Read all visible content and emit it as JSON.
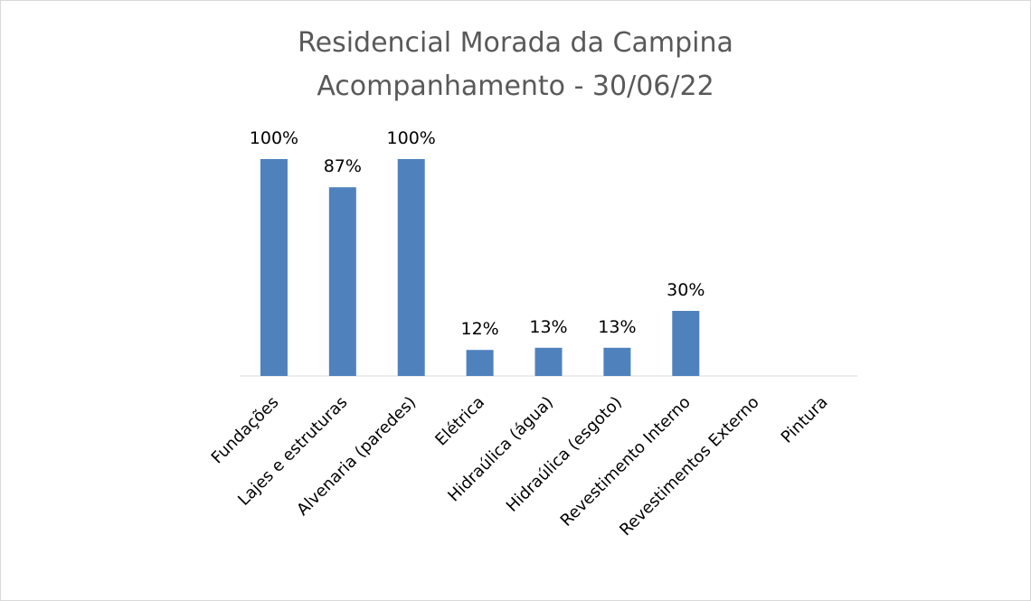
{
  "chart_data": {
    "type": "bar",
    "title": "Residencial Morada da Campina",
    "subtitle": "Acompanhamento - 30/06/22",
    "categories": [
      "Fundações",
      "Lajes e estruturas",
      "Alvenaria (paredes)",
      "Elétrica",
      "Hidraúlica (água)",
      "Hidraúlica (esgoto)",
      "Revestimento Interno",
      "Revestimentos Externo",
      "Pintura"
    ],
    "values": [
      100,
      87,
      100,
      12,
      13,
      13,
      30,
      null,
      null
    ],
    "data_labels": [
      "100%",
      "87%",
      "100%",
      "12%",
      "13%",
      "13%",
      "30%",
      "",
      ""
    ],
    "ylim": [
      0,
      100
    ],
    "grid": false,
    "legend": "none",
    "bar_color": "#4f81bd",
    "xlabel": "",
    "ylabel": ""
  }
}
